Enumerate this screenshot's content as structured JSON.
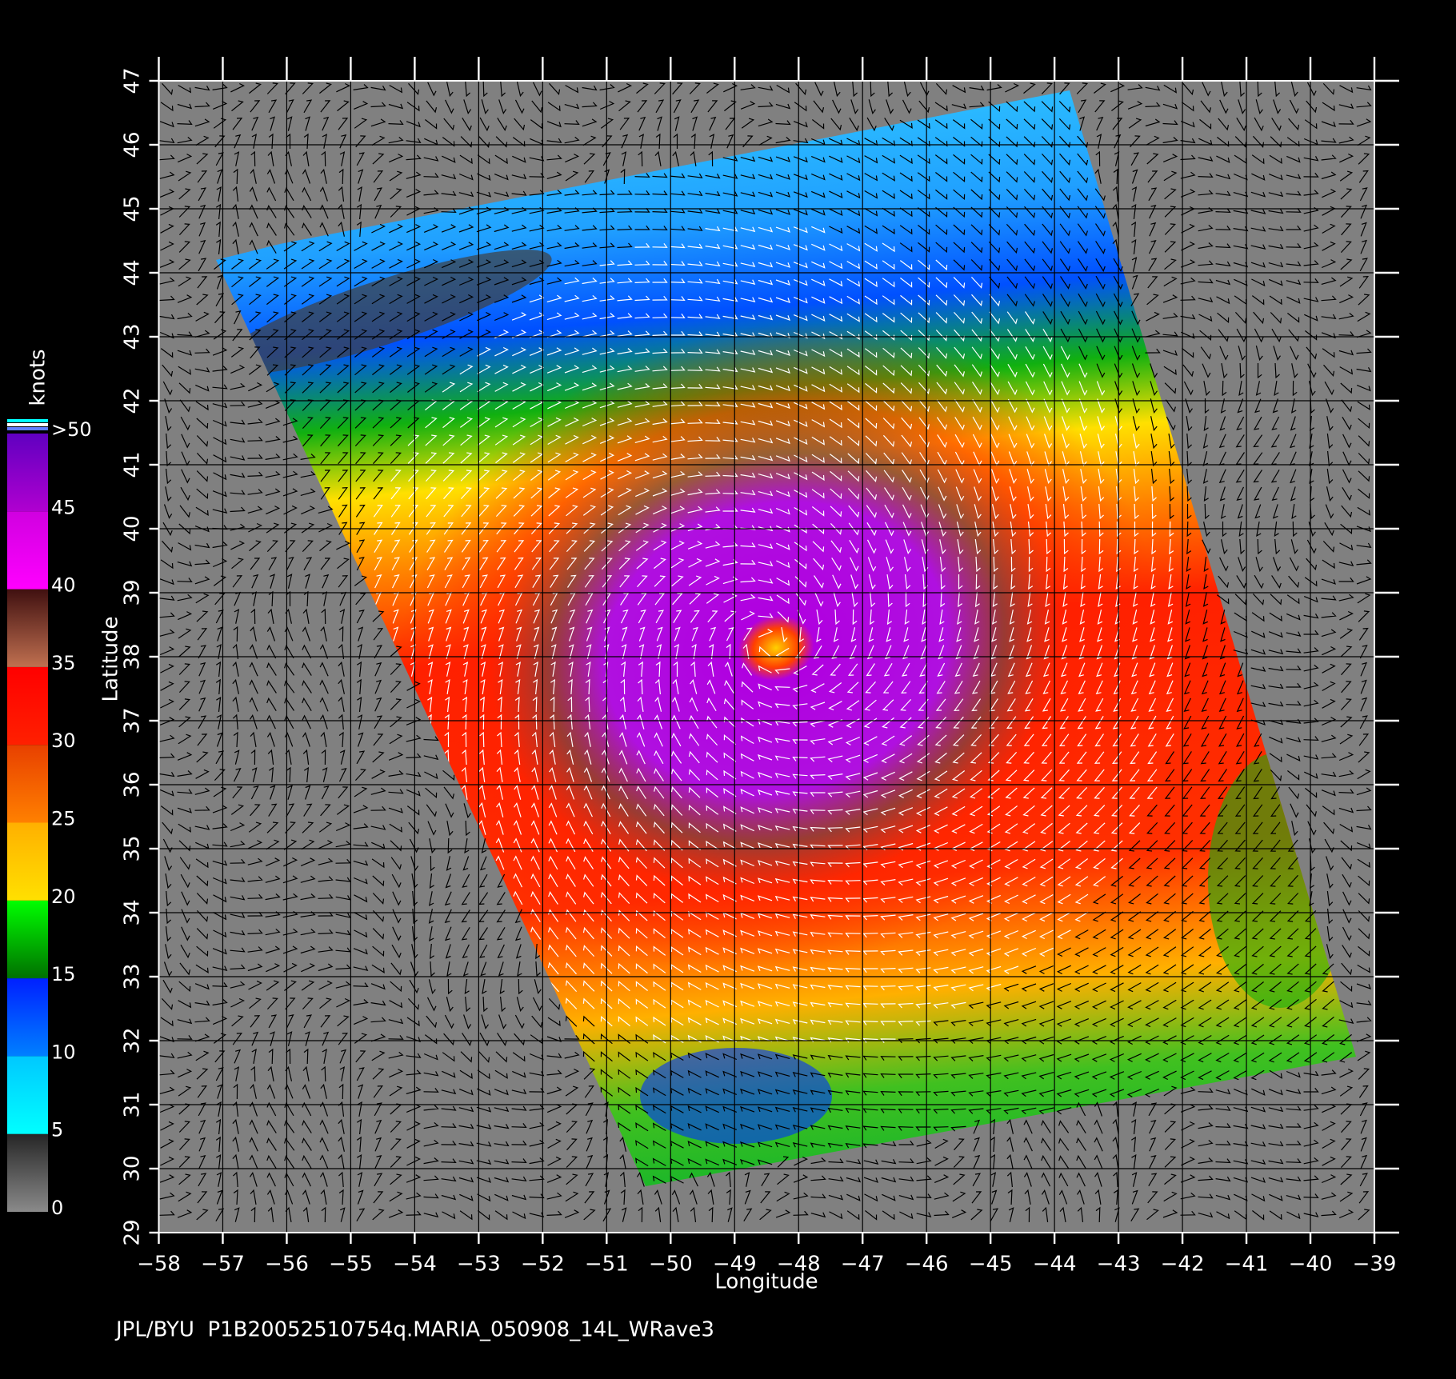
{
  "chart_data": {
    "type": "map",
    "footer": "JPL/BYU  P1B20052510754q.MARIA_050908_14L_WRave3",
    "xlabel": "Longitude",
    "ylabel": "Latitude",
    "xlim": [
      -58,
      -39
    ],
    "xticks": [
      -58,
      -57,
      -56,
      -55,
      -54,
      -53,
      -52,
      -51,
      -50,
      -49,
      -48,
      -47,
      -46,
      -45,
      -44,
      -43,
      -42,
      -41,
      -40,
      -39
    ],
    "ylim": [
      29,
      47
    ],
    "yticks": [
      29,
      30,
      31,
      32,
      33,
      34,
      35,
      36,
      37,
      38,
      39,
      40,
      41,
      42,
      43,
      44,
      45,
      46,
      47
    ],
    "grid": true,
    "colorbar": {
      "label": "knots",
      "lim": [
        0,
        50
      ],
      "ticks": [
        0,
        5,
        10,
        15,
        20,
        25,
        30,
        35,
        40,
        45,
        {
          "value": 50,
          "label": ">50"
        }
      ],
      "colors": [
        [
          "#8a8a8a",
          "#262626"
        ],
        [
          "#00ffff",
          "#00c8ff"
        ],
        [
          "#0080ff",
          "#0020ff"
        ],
        [
          "#007000",
          "#00ff00"
        ],
        [
          "#ffe000",
          "#ffb000"
        ],
        [
          "#ff8000",
          "#e84000"
        ],
        [
          "#ff2000",
          "#ff0000"
        ],
        [
          "#c07050",
          "#401010"
        ],
        [
          "#ff00ff",
          "#d000e0"
        ],
        [
          "#b000d0",
          "#6000c0"
        ]
      ]
    }
  }
}
